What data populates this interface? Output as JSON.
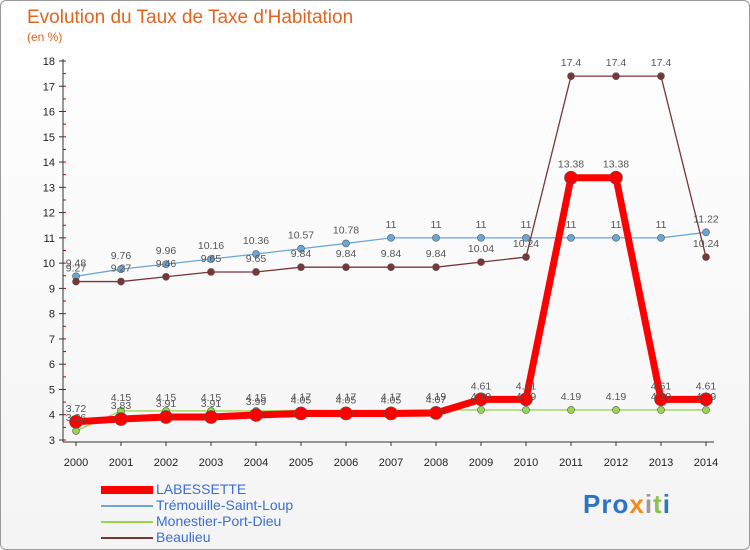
{
  "header": {
    "title": "Evolution du Taux de Taxe d'Habitation",
    "subtitle": "(en %)"
  },
  "logo": {
    "text": "Proxiti"
  },
  "colors": {
    "LABESSETTE": "#ff0000",
    "Trémouille-Saint-Loup": "#6aa6d6",
    "Monestier-Port-Dieu": "#99d64f",
    "Beaulieu": "#7a3535",
    "legend_text": "#3b6fd4",
    "axis": "#333333",
    "grid_tick": "#cc0000"
  },
  "chart_data": {
    "type": "line",
    "x": [
      2000,
      2001,
      2002,
      2003,
      2004,
      2005,
      2006,
      2007,
      2008,
      2009,
      2010,
      2011,
      2012,
      2013,
      2014
    ],
    "ylim": [
      3,
      18
    ],
    "yticks": [
      3,
      4,
      5,
      6,
      7,
      8,
      9,
      10,
      11,
      12,
      13,
      14,
      15,
      16,
      17,
      18
    ],
    "legend_position": "bottom-left",
    "series": [
      {
        "name": "LABESSETTE",
        "values": [
          3.72,
          3.83,
          3.91,
          3.91,
          3.99,
          4.05,
          4.05,
          4.05,
          4.07,
          4.61,
          4.61,
          13.38,
          13.38,
          4.61,
          4.61
        ],
        "labels": [
          "3.72",
          "3.83",
          "3.91",
          "3.91",
          "3.99",
          "4.05",
          "4.05",
          "4.05",
          "4.07",
          "4.61",
          "4.61",
          "13.38",
          "13.38",
          "4.61",
          "4.61"
        ]
      },
      {
        "name": "Trémouille-Saint-Loup",
        "values": [
          9.48,
          9.76,
          9.96,
          10.16,
          10.36,
          10.57,
          10.78,
          11,
          11,
          11,
          11,
          11,
          11,
          11,
          11.22
        ],
        "labels": [
          "9.48",
          "9.76",
          "9.96",
          "10.16",
          "10.36",
          "10.57",
          "10.78",
          "11",
          "11",
          "11",
          "11",
          "11",
          "11",
          "11",
          "11.22"
        ]
      },
      {
        "name": "Monestier-Port-Dieu",
        "values": [
          3.36,
          4.15,
          4.15,
          4.15,
          4.15,
          4.17,
          4.17,
          4.17,
          4.19,
          4.19,
          4.19,
          4.19,
          4.19,
          4.19,
          4.19
        ],
        "labels": [
          "3.36",
          "4.15",
          "4.15",
          "4.15",
          "4.15",
          "4.17",
          "4.17",
          "4.17",
          "4.19",
          "4.19",
          "4.19",
          "4.19",
          "4.19",
          "4.19",
          "4.19"
        ]
      },
      {
        "name": "Beaulieu",
        "values": [
          9.27,
          9.27,
          9.46,
          9.65,
          9.65,
          9.84,
          9.84,
          9.84,
          9.84,
          10.04,
          10.24,
          17.4,
          17.4,
          17.4,
          10.24
        ],
        "labels": [
          "9.27",
          "9.27",
          "9.46",
          "9.65",
          "9.65",
          "9.84",
          "9.84",
          "9.84",
          "9.84",
          "10.04",
          "10.24",
          "17.4",
          "17.4",
          "17.4",
          "10.24"
        ]
      }
    ]
  }
}
